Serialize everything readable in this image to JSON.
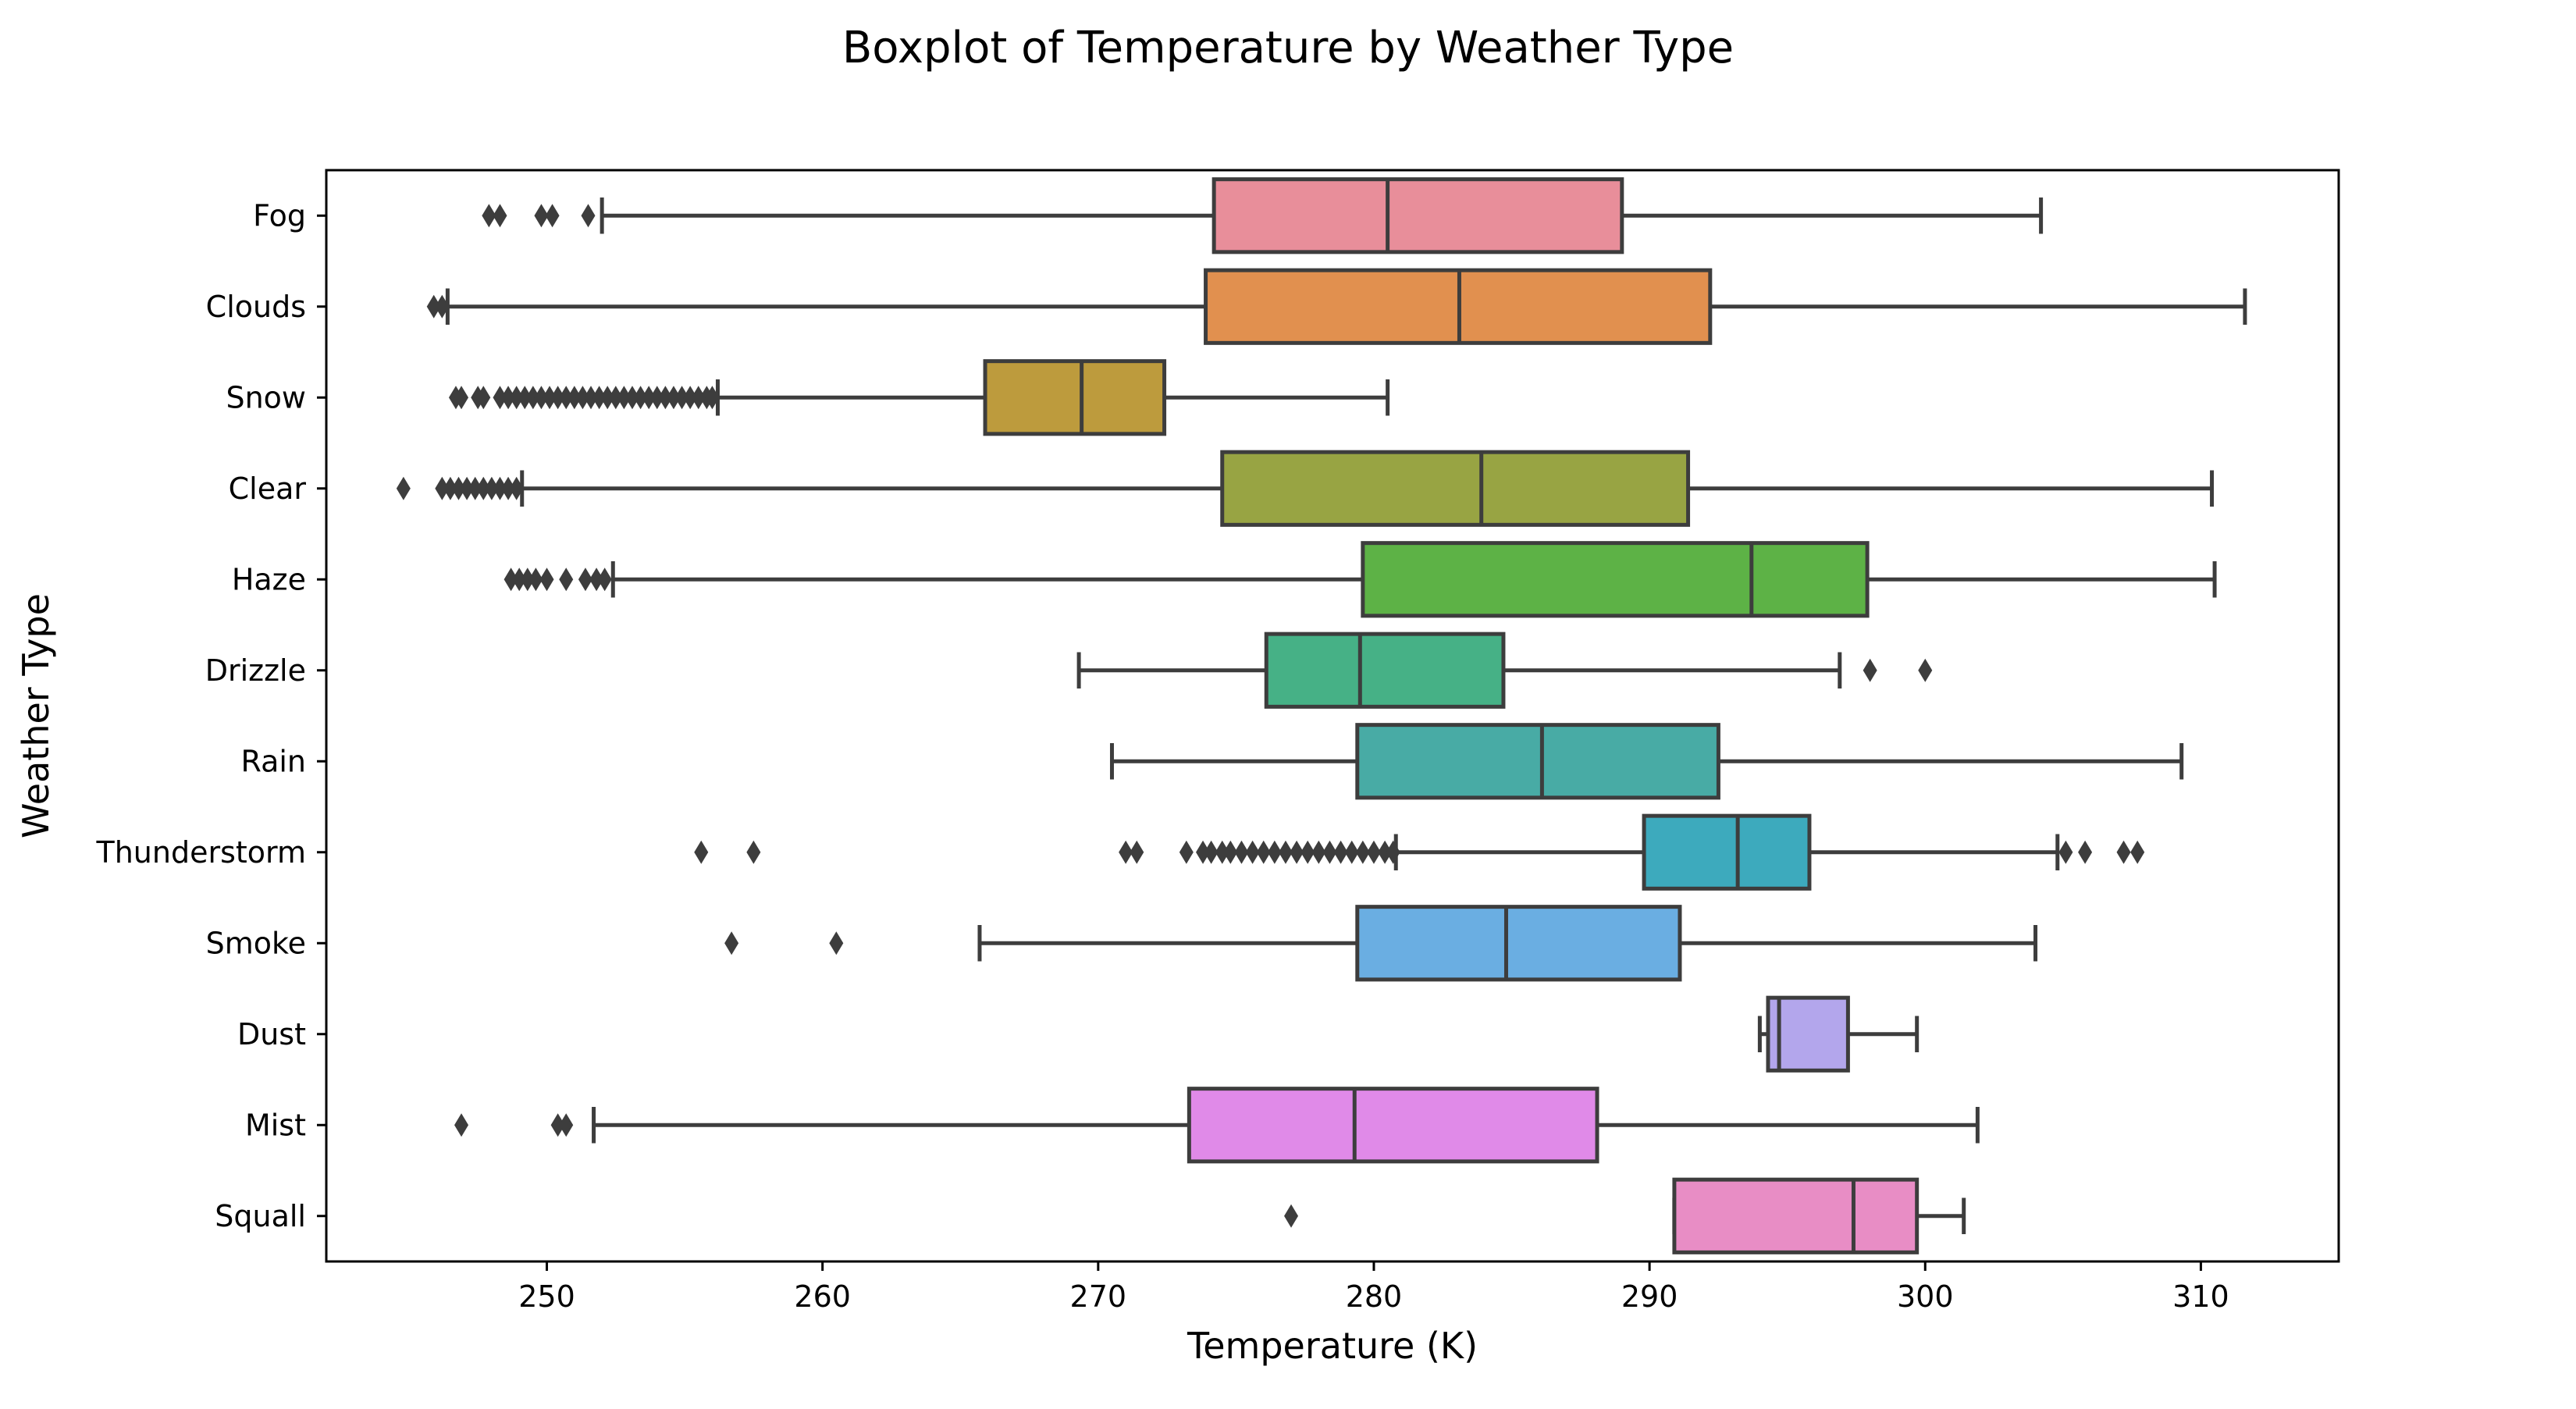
{
  "chart_data": {
    "type": "boxplot",
    "orientation": "horizontal",
    "title": "Boxplot of Temperature by Weather Type",
    "xlabel": "Temperature (K)",
    "ylabel": "Weather Type",
    "xlim": [
      242,
      315
    ],
    "xticks": [
      250,
      260,
      270,
      280,
      290,
      300,
      310
    ],
    "grid": false,
    "legend": "none",
    "categories": [
      "Fog",
      "Clouds",
      "Snow",
      "Clear",
      "Haze",
      "Drizzle",
      "Rain",
      "Thunderstorm",
      "Smoke",
      "Dust",
      "Mist",
      "Squall"
    ],
    "series": [
      {
        "category": "Fog",
        "color": "#e88e9a",
        "whisker_low": 252.0,
        "q1": 274.2,
        "median": 280.5,
        "q3": 289.0,
        "whisker_high": 304.2,
        "outliers": [
          247.9,
          248.3,
          249.8,
          250.2,
          251.5
        ]
      },
      {
        "category": "Clouds",
        "color": "#e1904f",
        "whisker_low": 246.4,
        "q1": 273.9,
        "median": 283.1,
        "q3": 292.2,
        "whisker_high": 311.6,
        "outliers": [
          245.9,
          246.2
        ]
      },
      {
        "category": "Snow",
        "color": "#bd9b3d",
        "whisker_low": 256.2,
        "q1": 265.9,
        "median": 269.4,
        "q3": 272.4,
        "whisker_high": 280.5,
        "outliers": [
          246.7,
          246.9,
          247.5,
          247.7,
          248.3,
          248.6,
          248.9,
          249.2,
          249.5,
          249.8,
          250.1,
          250.4,
          250.7,
          251.0,
          251.3,
          251.6,
          251.9,
          252.2,
          252.5,
          252.8,
          253.1,
          253.4,
          253.7,
          254.0,
          254.3,
          254.6,
          254.9,
          255.2,
          255.5,
          255.8,
          256.0
        ]
      },
      {
        "category": "Clear",
        "color": "#98a443",
        "whisker_low": 249.1,
        "q1": 274.5,
        "median": 283.9,
        "q3": 291.4,
        "whisker_high": 310.4,
        "outliers": [
          244.8,
          246.2,
          246.5,
          246.8,
          247.1,
          247.4,
          247.7,
          248.0,
          248.3,
          248.6,
          248.9
        ]
      },
      {
        "category": "Haze",
        "color": "#5db246",
        "whisker_low": 252.4,
        "q1": 279.6,
        "median": 293.7,
        "q3": 297.9,
        "whisker_high": 310.5,
        "outliers": [
          248.7,
          249.0,
          249.3,
          249.6,
          250.0,
          250.7,
          251.4,
          251.8,
          252.1
        ]
      },
      {
        "category": "Drizzle",
        "color": "#46b186",
        "whisker_low": 269.3,
        "q1": 276.1,
        "median": 279.5,
        "q3": 284.7,
        "whisker_high": 296.9,
        "outliers": [
          298.0,
          300.0
        ]
      },
      {
        "category": "Rain",
        "color": "#48aba5",
        "whisker_low": 270.5,
        "q1": 279.4,
        "median": 286.1,
        "q3": 292.5,
        "whisker_high": 309.3,
        "outliers": []
      },
      {
        "category": "Thunderstorm",
        "color": "#3daabd",
        "whisker_low": 280.8,
        "q1": 289.8,
        "median": 293.2,
        "q3": 295.8,
        "whisker_high": 304.8,
        "outliers": [
          255.6,
          257.5,
          271.0,
          271.4,
          273.2,
          273.8,
          274.1,
          274.5,
          274.8,
          275.2,
          275.6,
          276.0,
          276.4,
          276.8,
          277.2,
          277.6,
          278.0,
          278.4,
          278.8,
          279.2,
          279.6,
          280.0,
          280.4,
          280.7,
          305.1,
          305.8,
          307.2,
          307.7
        ]
      },
      {
        "category": "Smoke",
        "color": "#6aaee2",
        "whisker_low": 265.7,
        "q1": 279.4,
        "median": 284.8,
        "q3": 291.1,
        "whisker_high": 304.0,
        "outliers": [
          256.7,
          260.5
        ]
      },
      {
        "category": "Dust",
        "color": "#b3a6ec",
        "whisker_low": 294.0,
        "q1": 294.3,
        "median": 294.7,
        "q3": 297.2,
        "whisker_high": 299.7,
        "outliers": []
      },
      {
        "category": "Mist",
        "color": "#e08ae8",
        "whisker_low": 251.7,
        "q1": 273.3,
        "median": 279.3,
        "q3": 288.1,
        "whisker_high": 301.9,
        "outliers": [
          246.9,
          250.4,
          250.7
        ]
      },
      {
        "category": "Squall",
        "color": "#e88dc5",
        "whisker_low": 290.9,
        "q1": 290.9,
        "median": 297.4,
        "q3": 299.7,
        "whisker_high": 301.4,
        "outliers": [
          277.0
        ]
      }
    ]
  }
}
